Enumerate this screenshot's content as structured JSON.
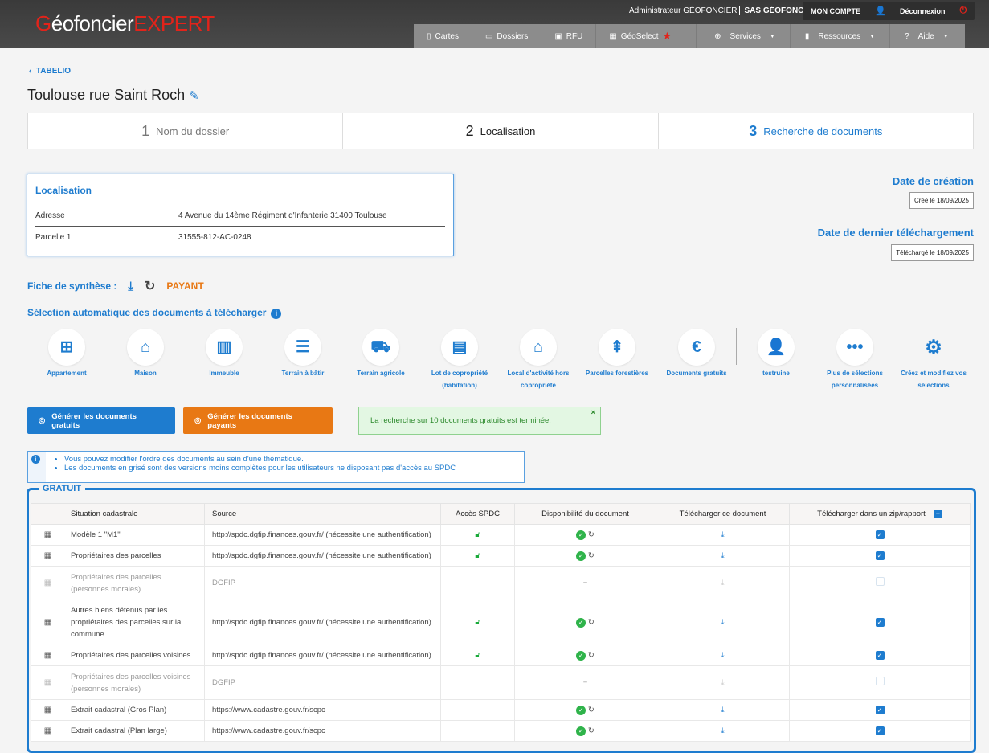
{
  "header": {
    "logo": {
      "part1": "G",
      "part2": "éofoncier",
      "part3": "EXPERT"
    },
    "user": "Administrateur GÉOFONCIER",
    "company": "SAS GÉOFONCIER",
    "account_label": "MON COMPTE",
    "logout_label": "Déconnexion",
    "nav": [
      {
        "label": "Cartes",
        "icon": "map-icon"
      },
      {
        "label": "Dossiers",
        "icon": "folder-icon"
      },
      {
        "label": "RFU",
        "icon": "rfu-icon"
      },
      {
        "label": "GéoSelect",
        "icon": "grid-icon"
      },
      {
        "label": "Services",
        "icon": "plus-circle-icon"
      },
      {
        "label": "Ressources",
        "icon": "book-icon"
      },
      {
        "label": "Aide",
        "icon": "question-icon"
      }
    ]
  },
  "breadcrumb": "TABELIO",
  "title": "Toulouse rue Saint Roch",
  "steps": [
    {
      "n": "1",
      "label": "Nom du dossier"
    },
    {
      "n": "2",
      "label": "Localisation"
    },
    {
      "n": "3",
      "label": "Recherche de documents"
    }
  ],
  "localisation": {
    "title": "Localisation",
    "rows": [
      {
        "k": "Adresse",
        "v": "4 Avenue du 14ème Régiment d'Infanterie 31400 Toulouse"
      },
      {
        "k": "Parcelle 1",
        "v": "31555-812-AC-0248"
      }
    ]
  },
  "dates": {
    "creation_label": "Date de création",
    "creation_value": "Créé le 18/09/2025",
    "download_label": "Date de dernier téléchargement",
    "download_value": "Téléchargé le 18/09/2025"
  },
  "fiche": {
    "label": "Fiche de synthèse :",
    "status": "PAYANT"
  },
  "selection_title": "Sélection automatique des documents à télécharger",
  "categories": [
    {
      "l1": "Appartement",
      "l2": "",
      "icon": "floorplan-icon"
    },
    {
      "l1": "Maison",
      "l2": "",
      "icon": "house-icon"
    },
    {
      "l1": "Immeuble",
      "l2": "",
      "icon": "building-icon"
    },
    {
      "l1": "Terrain à bâtir",
      "l2": "",
      "icon": "land-icon"
    },
    {
      "l1": "Terrain agricole",
      "l2": "",
      "icon": "tractor-icon"
    },
    {
      "l1": "Lot de copropriété",
      "l2": "(habitation)",
      "icon": "condo-icon"
    },
    {
      "l1": "Local d'activité hors",
      "l2": "copropriété",
      "icon": "warehouse-icon"
    },
    {
      "l1": "Parcelles forestières",
      "l2": "",
      "icon": "tree-icon"
    },
    {
      "l1": "Documents gratuits",
      "l2": "",
      "icon": "euro-icon"
    },
    {
      "l1": "testruine",
      "l2": "",
      "icon": "user-gear-icon"
    },
    {
      "l1": "Plus de sélections",
      "l2": "personnalisées",
      "icon": "more-icon"
    },
    {
      "l1": "Créez et modifiez vos",
      "l2": "sélections",
      "icon": "gear-icon"
    }
  ],
  "buttons": {
    "free": "Générer les documents gratuits",
    "paid": "Générer les documents payants"
  },
  "success_message": "La recherche sur 10 documents gratuits est terminée.",
  "tips": [
    "Vous pouvez modifier l'ordre des documents au sein d'une thématique.",
    "Les documents en grisé sont des versions moins complètes pour les utilisateurs ne disposant pas d'accès au SPDC"
  ],
  "section_label": "GRATUIT",
  "colors": {
    "accent": "#1e7ccf",
    "paid": "#e87814",
    "success": "#2fb34a"
  },
  "table": {
    "headers": [
      "Situation cadastrale",
      "Source",
      "Accès SPDC",
      "Disponibilité du document",
      "Télécharger ce document",
      "Télécharger dans un zip/rapport"
    ],
    "rows": [
      {
        "name": "Modèle 1 \"M1\"",
        "source": "http://spdc.dgfip.finances.gouv.fr/ (nécessite une authentification)",
        "spdc": true,
        "available": true,
        "checked": true,
        "grey": false
      },
      {
        "name": "Propriétaires des parcelles",
        "source": "http://spdc.dgfip.finances.gouv.fr/ (nécessite une authentification)",
        "spdc": true,
        "available": true,
        "checked": true,
        "grey": false
      },
      {
        "name": "Propriétaires des parcelles (personnes morales)",
        "source": "DGFIP",
        "spdc": false,
        "available": false,
        "checked": false,
        "grey": true
      },
      {
        "name": "Autres biens détenus par les propriétaires des parcelles sur la commune",
        "source": "http://spdc.dgfip.finances.gouv.fr/ (nécessite une authentification)",
        "spdc": true,
        "available": true,
        "checked": true,
        "grey": false
      },
      {
        "name": "Propriétaires des parcelles voisines",
        "source": "http://spdc.dgfip.finances.gouv.fr/ (nécessite une authentification)",
        "spdc": true,
        "available": true,
        "checked": true,
        "grey": false
      },
      {
        "name": "Propriétaires des parcelles voisines (personnes morales)",
        "source": "DGFIP",
        "spdc": false,
        "available": false,
        "checked": false,
        "grey": true
      },
      {
        "name": "Extrait cadastral (Gros Plan)",
        "source": "https://www.cadastre.gouv.fr/scpc",
        "spdc": false,
        "available": true,
        "checked": true,
        "grey": false
      },
      {
        "name": "Extrait cadastral (Plan large)",
        "source": "https://www.cadastre.gouv.fr/scpc",
        "spdc": false,
        "available": true,
        "checked": true,
        "grey": false
      }
    ]
  }
}
